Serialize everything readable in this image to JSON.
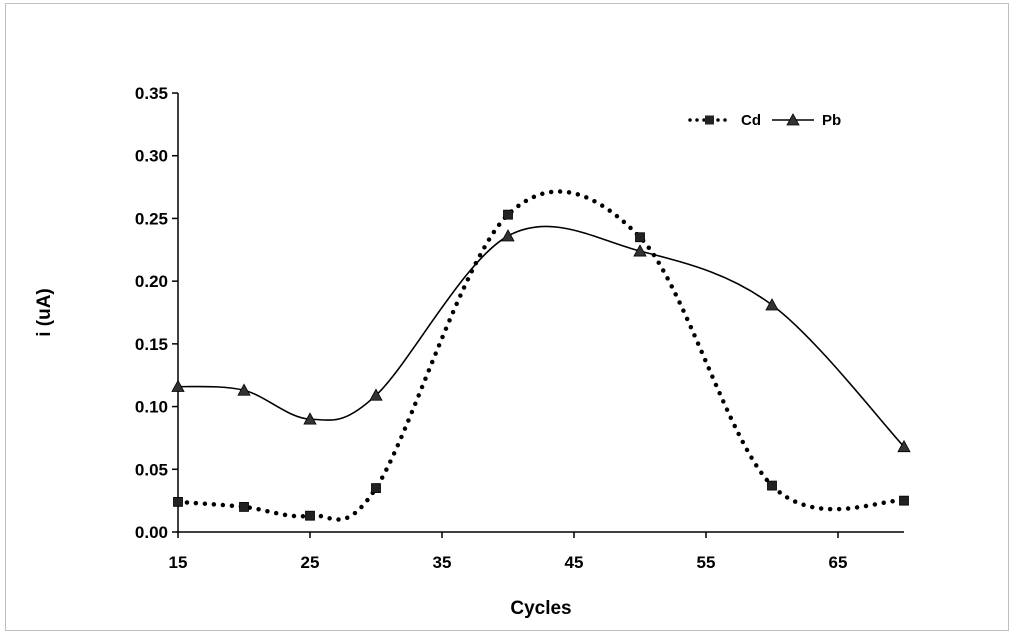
{
  "chart_data": {
    "type": "line",
    "xlabel": "Cycles",
    "ylabel": "i  (uA)",
    "xlim": [
      15,
      70
    ],
    "ylim": [
      0,
      0.35
    ],
    "xticks": [
      15,
      25,
      35,
      45,
      55,
      65
    ],
    "yticks": [
      0.0,
      0.05,
      0.1,
      0.15,
      0.2,
      0.25,
      0.3,
      0.35
    ],
    "x_tick_labels": [
      "15",
      "25",
      "35",
      "45",
      "55",
      "65"
    ],
    "y_tick_labels": [
      "0.00",
      "0.05",
      "0.10",
      "0.15",
      "0.20",
      "0.25",
      "0.30",
      "0.35"
    ],
    "grid": false,
    "legend_position": "top-right",
    "series": [
      {
        "name": "Cd",
        "line_style": "dotted",
        "marker": "square",
        "color": "#000000",
        "x": [
          15,
          20,
          25,
          30,
          40,
          50,
          60,
          70
        ],
        "y": [
          0.024,
          0.02,
          0.013,
          0.035,
          0.253,
          0.235,
          0.037,
          0.025
        ]
      },
      {
        "name": "Pb",
        "line_style": "solid",
        "marker": "triangle",
        "color": "#000000",
        "x": [
          15,
          20,
          25,
          30,
          40,
          50,
          60,
          70
        ],
        "y": [
          0.116,
          0.113,
          0.09,
          0.109,
          0.236,
          0.224,
          0.181,
          0.068
        ]
      }
    ]
  }
}
